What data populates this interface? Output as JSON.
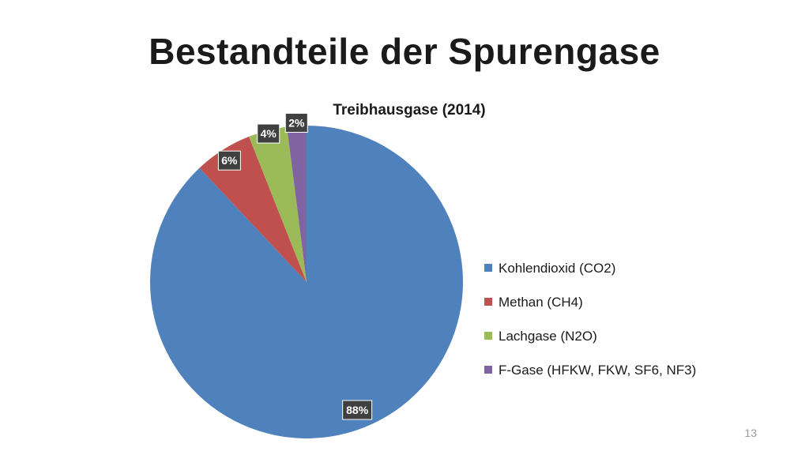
{
  "slide": {
    "title": "Bestandteile der Spurengase",
    "page_number": "13"
  },
  "chart_data": {
    "type": "pie",
    "title": "Treibhausgase (2014)",
    "categories": [
      "Kohlendioxid (CO2)",
      "Methan (CH4)",
      "Lachgase (N2O)",
      "F-Gase (HFKW, FKW, SF6, NF3)"
    ],
    "values": [
      88,
      6,
      4,
      2
    ],
    "data_labels": [
      "88%",
      "6%",
      "4%",
      "2%"
    ],
    "colors": [
      "#4f81bd",
      "#c0504d",
      "#9bbb59",
      "#8064a2"
    ],
    "legend_position": "right"
  }
}
